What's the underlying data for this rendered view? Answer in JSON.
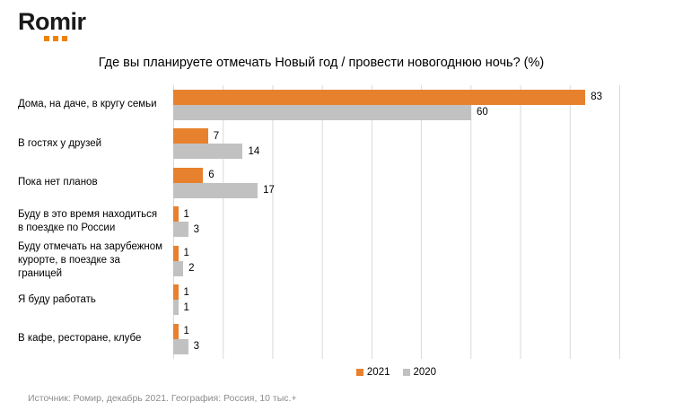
{
  "logo": {
    "text": "Romir",
    "dot_color": "#ef8200"
  },
  "source_note": "Источник: Ромир, декабрь 2021. География: Россия, 10 тыс.+",
  "colors": {
    "bar_2021": "#e8812d",
    "bar_2020": "#c1c1c1",
    "gridline": "#d9d9d9",
    "source_text": "#8c8c8c"
  },
  "chart_data": {
    "type": "bar",
    "orientation": "horizontal",
    "title": "Где вы планируете отмечать Новый год / провести новогоднюю ночь? (%)",
    "categories": [
      "Дома, на даче, в кругу семьи",
      "В гостях у друзей",
      "Пока нет планов",
      "Буду в это время находиться\nв поездке по России",
      "Буду отмечать на  зарубежном\nкурорте, в поездке за границей",
      "Я буду работать",
      "В кафе, ресторане, клубе"
    ],
    "series": [
      {
        "name": "2021",
        "color": "#e8812d",
        "values": [
          83,
          7,
          6,
          1,
          1,
          1,
          1
        ]
      },
      {
        "name": "2020",
        "color": "#c1c1c1",
        "values": [
          60,
          14,
          17,
          3,
          2,
          1,
          3
        ]
      }
    ],
    "xlim": [
      0,
      90
    ],
    "gridlines_every": 10,
    "grid": "vertical",
    "legend_position": "bottom",
    "value_labels": "outside-end"
  }
}
